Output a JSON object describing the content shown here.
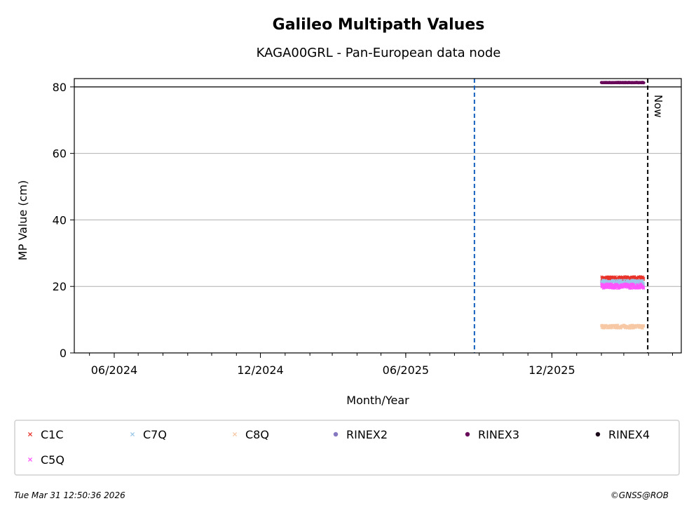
{
  "chart_data": {
    "type": "scatter",
    "title": "Galileo Multipath Values",
    "subtitle": "KAGA00GRL - Pan-European data node",
    "xlabel": "Month/Year",
    "ylabel": "MP Value (cm)",
    "ylim": [
      0,
      82.5
    ],
    "xlim": [
      "2024-04-12",
      "2026-05-12"
    ],
    "x_ticks": [
      {
        "date": "2024-06-01",
        "label": "06/2024"
      },
      {
        "date": "2024-12-01",
        "label": "12/2024"
      },
      {
        "date": "2025-06-01",
        "label": "06/2025"
      },
      {
        "date": "2025-12-01",
        "label": "12/2025"
      }
    ],
    "y_ticks": [
      0,
      20,
      40,
      60,
      80
    ],
    "grid": "horizontal",
    "threshold_line": {
      "y": 80,
      "color": "#000000"
    },
    "vertical_lines": [
      {
        "date": "2025-08-26",
        "style": "dashed",
        "color": "#1560bd"
      },
      {
        "date": "2026-03-31",
        "style": "dashed",
        "color": "#000000",
        "label": "Now"
      }
    ],
    "series": [
      {
        "name": "C1C",
        "color": "#e8332a",
        "marker": "x",
        "x_range": [
          "2026-02-01",
          "2026-03-26"
        ],
        "y_center": 22.3,
        "y_spread": 0.7
      },
      {
        "name": "C7Q",
        "color": "#9cc8e8",
        "marker": "x",
        "x_range": [
          "2026-02-01",
          "2026-03-26"
        ],
        "y_center": 21.2,
        "y_spread": 0.7
      },
      {
        "name": "C8Q",
        "color": "#f7c8a4",
        "marker": "x",
        "x_range": [
          "2026-02-01",
          "2026-03-26"
        ],
        "y_center": 7.9,
        "y_spread": 0.5
      },
      {
        "name": "RINEX2",
        "color": "#8577c0",
        "marker": "o",
        "x_range": null,
        "y_center": null,
        "y_spread": 0
      },
      {
        "name": "RINEX3",
        "color": "#6a0a5a",
        "marker": "o",
        "x_range": [
          "2026-02-01",
          "2026-03-26"
        ],
        "y_center": 81.3,
        "y_spread": 0.05
      },
      {
        "name": "RINEX4",
        "color": "#1a0a1a",
        "marker": "o",
        "x_range": null,
        "y_center": null,
        "y_spread": 0
      },
      {
        "name": "C5Q",
        "color": "#ff55ff",
        "marker": "x",
        "x_range": [
          "2026-02-01",
          "2026-03-26"
        ],
        "y_center": 20.1,
        "y_spread": 0.7
      }
    ]
  },
  "footer": {
    "timestamp": "Tue Mar 31 12:50:36 2026",
    "copyright": "©GNSS@ROB"
  }
}
